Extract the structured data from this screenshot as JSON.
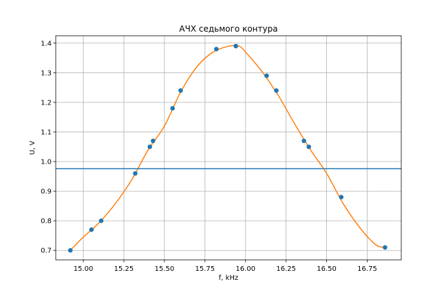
{
  "chart_data": {
    "type": "scatter",
    "title": "АЧХ седьмого контура",
    "xlabel": "f, kHz",
    "ylabel": "U, V",
    "xlim": [
      14.83,
      16.96
    ],
    "ylim": [
      0.668,
      1.425
    ],
    "xticks": [
      15.0,
      15.25,
      15.5,
      15.75,
      16.0,
      16.25,
      16.5,
      16.75
    ],
    "xtick_labels": [
      "15.00",
      "15.25",
      "15.50",
      "15.75",
      "16.00",
      "16.25",
      "16.50",
      "16.75"
    ],
    "yticks": [
      0.7,
      0.8,
      0.9,
      1.0,
      1.1,
      1.2,
      1.3,
      1.4
    ],
    "ytick_labels": [
      "0.7",
      "0.8",
      "0.9",
      "1.0",
      "1.1",
      "1.2",
      "1.3",
      "1.4"
    ],
    "grid": true,
    "series": [
      {
        "kind": "scatter",
        "color": "#1f77b4",
        "x": [
          14.92,
          15.05,
          15.11,
          15.32,
          15.41,
          15.43,
          15.55,
          15.6,
          15.82,
          15.94,
          16.13,
          16.19,
          16.36,
          16.39,
          16.59,
          16.86
        ],
        "y": [
          0.7,
          0.77,
          0.8,
          0.96,
          1.05,
          1.07,
          1.18,
          1.24,
          1.38,
          1.39,
          1.29,
          1.24,
          1.07,
          1.05,
          0.88,
          0.71
        ]
      },
      {
        "kind": "line",
        "color": "#ff7f0e",
        "x": [
          14.92,
          15.0,
          15.1,
          15.2,
          15.3,
          15.4,
          15.5,
          15.6,
          15.7,
          15.8,
          15.9,
          15.96,
          16.0,
          16.1,
          16.2,
          16.3,
          16.4,
          16.5,
          16.6,
          16.7,
          16.8,
          16.86
        ],
        "y": [
          0.7,
          0.745,
          0.795,
          0.86,
          0.94,
          1.04,
          1.12,
          1.235,
          1.32,
          1.37,
          1.39,
          1.39,
          1.37,
          1.305,
          1.225,
          1.13,
          1.04,
          0.96,
          0.86,
          0.78,
          0.72,
          0.71
        ]
      },
      {
        "kind": "hline",
        "color": "#1f77b4",
        "y": 0.976
      }
    ]
  }
}
